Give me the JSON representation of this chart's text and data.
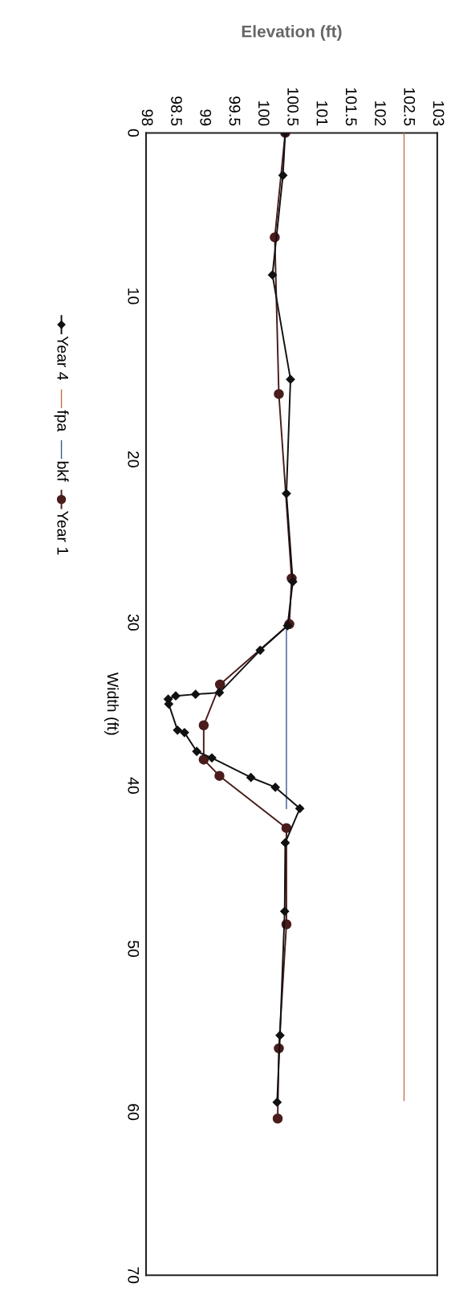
{
  "chart_data": {
    "type": "line",
    "xlabel": "Elevation (ft)",
    "ylabel": "Width (ft)",
    "xlim": [
      98,
      103
    ],
    "xticks": [
      98,
      98.5,
      99,
      99.5,
      100,
      100.5,
      101,
      101.5,
      102,
      102.5,
      103
    ],
    "ylim": [
      70,
      0
    ],
    "yticks": [
      0,
      10,
      20,
      30,
      40,
      50,
      60,
      70
    ],
    "grid": false,
    "legend": "left",
    "series": [
      {
        "name": "Year 4",
        "color": "#111111",
        "marker": "diamond",
        "values": [
          0,
          2.6,
          8.7,
          15.1,
          22.1,
          27.5,
          30.2,
          31.7,
          34.3,
          34.4,
          34.5,
          34.7,
          35.0,
          36.6,
          36.75,
          37.9,
          38.3,
          39.5,
          40.1,
          41.4,
          43.5,
          47.7,
          55.3,
          59.4
        ],
        "x": [
          100.39,
          100.35,
          100.17,
          100.48,
          100.41,
          100.52,
          100.43,
          99.96,
          99.26,
          98.85,
          98.51,
          98.38,
          98.39,
          98.54,
          98.66,
          98.87,
          99.13,
          99.8,
          100.22,
          100.64,
          100.39,
          100.38,
          100.3,
          100.25
        ]
      },
      {
        "name": "fpa",
        "color": "#c0704a",
        "marker": "none",
        "values": [
          0,
          59.3
        ],
        "x": [
          102.43,
          102.43
        ]
      },
      {
        "name": "bkf",
        "color": "#3a5a8a",
        "marker": "none",
        "values": [
          30.1,
          41.4
        ],
        "x": [
          100.41,
          100.41
        ]
      },
      {
        "name": "Year 1",
        "color": "#4a1c1c",
        "marker": "circle",
        "values": [
          0,
          6.4,
          16.0,
          27.3,
          30.1,
          33.8,
          36.3,
          38.4,
          39.4,
          42.6,
          48.5,
          56.1,
          60.4
        ],
        "x": [
          100.39,
          100.21,
          100.28,
          100.5,
          100.46,
          99.27,
          98.99,
          98.99,
          99.26,
          100.41,
          100.41,
          100.28,
          100.26
        ]
      }
    ]
  }
}
